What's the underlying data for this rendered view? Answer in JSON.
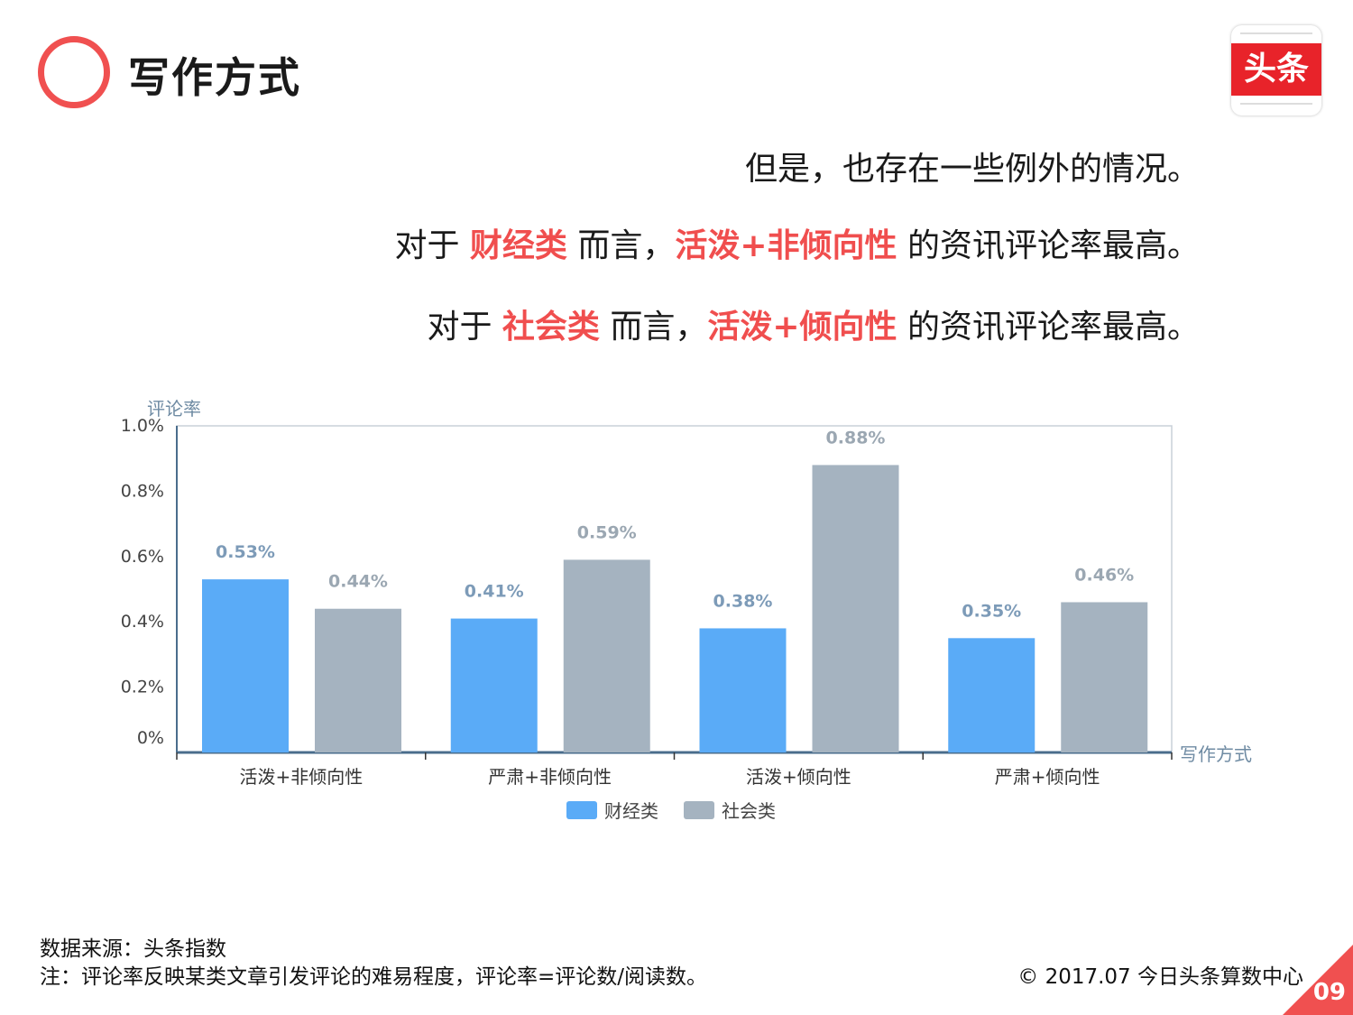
{
  "header": {
    "title": "写作方式",
    "logo_text": "头条"
  },
  "headlines": {
    "line1": "但是，也存在一些例外的情况。",
    "line2": {
      "p1": "对于 ",
      "h1": "财经类",
      "p2": " 而言，",
      "h2": "活泼+非倾向性",
      "p3": " 的资讯评论率最高。"
    },
    "line3": {
      "p1": "对于 ",
      "h1": "社会类",
      "p2": " 而言，",
      "h2": "活泼+倾向性",
      "p3": " 的资讯评论率最高。"
    }
  },
  "chart_data": {
    "type": "bar",
    "ylabel": "评论率",
    "xlabel": "写作方式",
    "yticks": [
      "0%",
      "0.2%",
      "0.4%",
      "0.6%",
      "0.8%",
      "1.0%"
    ],
    "ylim": [
      0,
      1.0
    ],
    "categories": [
      "活泼+非倾向性",
      "严肃+非倾向性",
      "活泼+倾向性",
      "严肃+倾向性"
    ],
    "series": [
      {
        "name": "财经类",
        "color": "#5aabf7",
        "values": [
          0.53,
          0.41,
          0.38,
          0.35
        ],
        "labels": [
          "0.53%",
          "0.41%",
          "0.38%",
          "0.35%"
        ]
      },
      {
        "name": "社会类",
        "color": "#a5b3c0",
        "values": [
          0.44,
          0.59,
          0.88,
          0.46
        ],
        "labels": [
          "0.44%",
          "0.59%",
          "0.88%",
          "0.46%"
        ]
      }
    ],
    "legend": "bottom"
  },
  "footer": {
    "source": "数据来源：头条指数",
    "note": "注：评论率反映某类文章引发评论的难易程度，评论率=评论数/阅读数。",
    "copyright": "© 2017.07 今日头条算数中心",
    "page_number": "09"
  },
  "colors": {
    "accent": "#f05050",
    "highlight": "#f04e4e"
  }
}
